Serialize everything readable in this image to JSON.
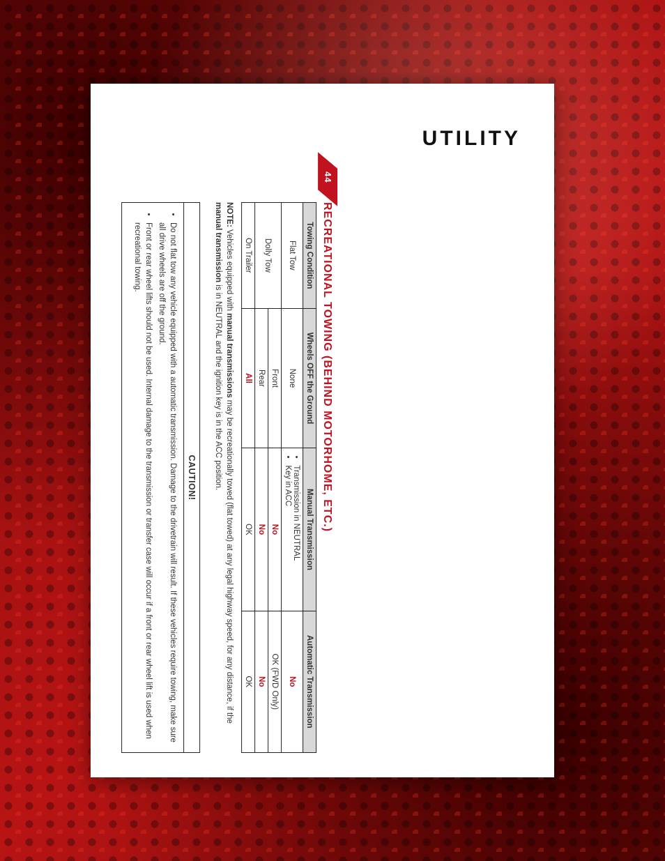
{
  "page_number": "44",
  "section_header": "UTILITY",
  "title": "RECREATIONAL TOWING (BEHIND MOTORHOME, ETC.)",
  "table": {
    "headers": {
      "c0": "Towing Condition",
      "c1": "Wheels OFF the Ground",
      "c2": "Manual Transmission",
      "c3": "Automatic Transmission"
    },
    "rows": {
      "flat_tow": {
        "cond": "Flat Tow",
        "wheels": "None",
        "manual_items": {
          "a": "Transmission in NEUTRAL",
          "b": "Key in ACC"
        },
        "auto": "No"
      },
      "dolly_front": {
        "cond": "Dolly Tow",
        "wheels": "Front",
        "manual": "No",
        "auto": "OK (FWD Only)"
      },
      "dolly_rear": {
        "wheels": "Rear",
        "manual": "No",
        "auto": "No"
      },
      "on_trailer": {
        "cond": "On Trailer",
        "wheels": "All",
        "manual": "OK",
        "auto": "OK"
      }
    }
  },
  "note": {
    "label": "NOTE:",
    "text_a": " Vehicles equipped with ",
    "bold_a": "manual transmissions",
    "text_b": " may be recreationally towed (flat towed) at any legal highway speed, for any distance, if the ",
    "bold_b": "manual transmission",
    "text_c": " is in NEUTRAL and the ignition key is in the ACC position."
  },
  "caution": {
    "heading": "CAUTION!",
    "items": {
      "a": "Do not flat tow any vehicle equipped with a automatic transmission. Damage to the drivetrain will result. If these vehicles require towing, make sure all drive wheels are off the ground.",
      "b": "Front or rear wheel lifts should not be used. Internal damage to the transmission or transfer case will occur if a front or rear wheel lift is used when recreational towing."
    }
  },
  "colors": {
    "accent": "#c1121f",
    "header_bg": "#d8d8d8",
    "border": "#222222",
    "text": "#333333",
    "page_bg": "#ffffff"
  }
}
